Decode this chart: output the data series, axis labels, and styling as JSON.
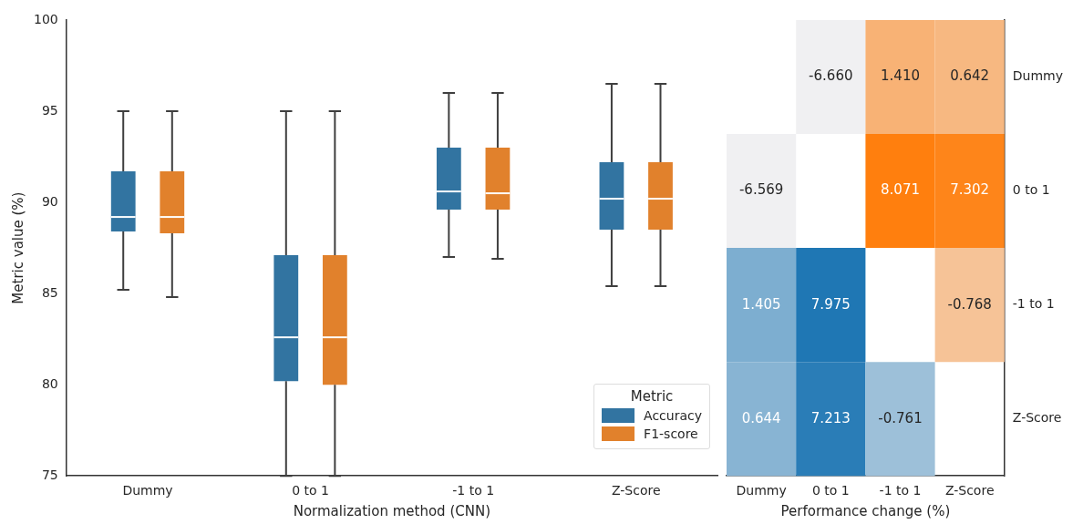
{
  "chart_data": [
    {
      "type": "box",
      "categories": [
        "Dummy",
        "0 to 1",
        "-1 to 1",
        "Z-Score"
      ],
      "xlabel": "Normalization method (CNN)",
      "ylabel": "Metric value (%)",
      "ylim": [
        75,
        100
      ],
      "yticks": [
        75,
        80,
        85,
        90,
        95,
        100
      ],
      "legend": "bottom right",
      "legend_title": "Metric",
      "series": [
        {
          "name": "Accuracy",
          "color": "#3274a1",
          "boxes": [
            {
              "low": 85.2,
              "q1": 88.4,
              "median": 89.2,
              "q3": 91.7,
              "high": 95
            },
            {
              "low": 75,
              "q1": 80.2,
              "median": 82.6,
              "q3": 87.1,
              "high": 95
            },
            {
              "low": 87,
              "q1": 89.6,
              "median": 90.6,
              "q3": 93,
              "high": 96
            },
            {
              "low": 85.4,
              "q1": 88.5,
              "median": 90.2,
              "q3": 92.2,
              "high": 96.5
            }
          ]
        },
        {
          "name": "F1-score",
          "color": "#e1812c",
          "boxes": [
            {
              "low": 84.8,
              "q1": 88.3,
              "median": 89.2,
              "q3": 91.7,
              "high": 95
            },
            {
              "low": 75,
              "q1": 80,
              "median": 82.6,
              "q3": 87.1,
              "high": 95
            },
            {
              "low": 86.9,
              "q1": 89.6,
              "median": 90.5,
              "q3": 93,
              "high": 96
            },
            {
              "low": 85.4,
              "q1": 88.5,
              "median": 90.2,
              "q3": 92.2,
              "high": 96.5
            }
          ]
        }
      ]
    },
    {
      "type": "heatmap",
      "xlabel": "Performance change (%)",
      "categories": [
        "Dummy",
        "0 to 1",
        "-1 to 1",
        "Z-Score"
      ],
      "y_categories": [
        "Dummy",
        "0 to 1",
        "-1 to 1",
        "Z-Score"
      ],
      "colors": [
        "#1f77b4",
        "#ff7f0e"
      ],
      "data_labels": true,
      "cells": [
        [
          null,
          -6.66,
          1.41,
          0.642
        ],
        [
          -6.569,
          null,
          8.071,
          7.302
        ],
        [
          1.405,
          7.975,
          null,
          -0.768
        ],
        [
          0.644,
          7.213,
          -0.761,
          null
        ]
      ],
      "cell_labels": [
        [
          null,
          "-6.660",
          "1.410",
          "0.642"
        ],
        [
          "-6.569",
          null,
          "8.071",
          "7.302"
        ],
        [
          "1.405",
          "7.975",
          null,
          "-0.768"
        ],
        [
          "0.644",
          "7.213",
          "-0.761",
          null
        ]
      ]
    }
  ]
}
